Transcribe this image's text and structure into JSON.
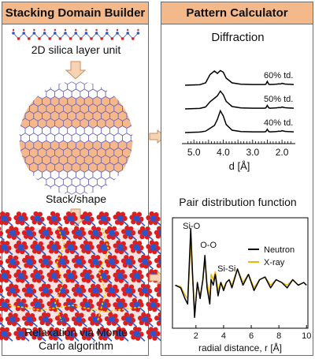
{
  "left_panel": {
    "title": "Stacking Domain Builder",
    "step1_label": "2D silica layer unit",
    "step2_label": "Stack/shape",
    "step3_label_line1": "Relaxation via Monte",
    "step3_label_line2": "Carlo algorithm"
  },
  "right_panel": {
    "title": "Pattern Calculator",
    "diffraction_title": "Diffraction",
    "pdf_title": "Pair distribution function"
  },
  "colors": {
    "header": "#f3b98b",
    "arrow_fill": "#f6d3b5",
    "arrow_stroke": "#c98f5e",
    "hex_fill": "#f6b88a",
    "neutron": "#000000",
    "xray": "#f0b400",
    "silicon": "#2a56c8",
    "oxygen": "#dd1e1e"
  },
  "chart_data": [
    {
      "type": "line",
      "title": "Diffraction",
      "xlabel": "d [Å]",
      "ylabel": "",
      "x_ticks": [
        5.0,
        4.0,
        3.0,
        2.0
      ],
      "x_tick_labels": [
        "5.0",
        "4.0",
        "3.0",
        "2.0"
      ],
      "xlim": [
        5.3,
        1.6
      ],
      "x_reversed": true,
      "series": [
        {
          "name": "60% td.",
          "x": [
            5.3,
            4.8,
            4.6,
            4.45,
            4.3,
            4.2,
            4.1,
            4.0,
            3.9,
            3.7,
            3.4,
            3.0,
            2.6,
            2.55,
            2.5,
            2.45,
            2.4,
            2.2,
            2.1,
            2.05,
            2.0,
            1.9,
            1.8,
            1.6
          ],
          "y": [
            0.0,
            0.02,
            0.1,
            0.45,
            0.6,
            0.5,
            0.62,
            0.55,
            0.3,
            0.1,
            0.04,
            0.03,
            0.03,
            0.04,
            0.16,
            0.04,
            0.03,
            0.04,
            0.06,
            0.05,
            0.08,
            0.05,
            0.04,
            0.03
          ]
        },
        {
          "name": "50% td.",
          "x": [
            5.3,
            4.8,
            4.6,
            4.45,
            4.3,
            4.2,
            4.1,
            4.0,
            3.9,
            3.7,
            3.4,
            3.0,
            2.6,
            2.55,
            2.5,
            2.45,
            2.4,
            2.2,
            2.1,
            2.05,
            2.0,
            1.9,
            1.8,
            1.6
          ],
          "y": [
            0.0,
            0.02,
            0.08,
            0.3,
            0.45,
            0.55,
            0.75,
            0.6,
            0.32,
            0.1,
            0.04,
            0.03,
            0.03,
            0.04,
            0.15,
            0.04,
            0.03,
            0.04,
            0.06,
            0.05,
            0.08,
            0.05,
            0.04,
            0.03
          ]
        },
        {
          "name": "40% td.",
          "x": [
            5.3,
            4.8,
            4.6,
            4.45,
            4.3,
            4.2,
            4.1,
            4.0,
            3.9,
            3.7,
            3.4,
            3.0,
            2.6,
            2.55,
            2.5,
            2.45,
            2.4,
            2.2,
            2.1,
            2.05,
            2.0,
            1.9,
            1.8,
            1.6
          ],
          "y": [
            0.0,
            0.02,
            0.06,
            0.18,
            0.3,
            0.55,
            0.92,
            0.7,
            0.34,
            0.1,
            0.04,
            0.03,
            0.03,
            0.04,
            0.14,
            0.04,
            0.03,
            0.04,
            0.06,
            0.05,
            0.08,
            0.05,
            0.04,
            0.03
          ]
        }
      ],
      "legend": "inline-right",
      "grid": false
    },
    {
      "type": "line",
      "title": "Pair distribution function",
      "xlabel": "radial distance, r [Å]",
      "ylabel": "",
      "x_ticks": [
        2,
        4,
        6,
        8,
        10
      ],
      "xlim": [
        0.3,
        10.1
      ],
      "ylim": [
        -0.8,
        1.25
      ],
      "annotations": [
        {
          "text": "Si-O",
          "x": 1.62
        },
        {
          "text": "O-O",
          "x": 2.65
        },
        {
          "text": "Si-Si",
          "x": 3.1
        }
      ],
      "series": [
        {
          "name": "Neutron",
          "x": [
            0.5,
            0.9,
            1.2,
            1.4,
            1.5,
            1.62,
            1.75,
            1.9,
            2.1,
            2.3,
            2.5,
            2.65,
            2.8,
            3.0,
            3.1,
            3.25,
            3.4,
            3.6,
            3.8,
            4.0,
            4.2,
            4.4,
            4.6,
            5.0,
            5.4,
            5.8,
            6.2,
            6.6,
            7.0,
            7.4,
            7.8,
            8.2,
            8.6,
            9.0,
            9.4,
            9.8,
            10.0
          ],
          "y": [
            0.0,
            -0.05,
            -0.25,
            -0.35,
            0.3,
            1.05,
            0.25,
            -0.6,
            0.05,
            -0.25,
            0.1,
            0.55,
            -0.05,
            -0.35,
            0.1,
            0.0,
            0.2,
            -0.2,
            0.05,
            -0.1,
            0.05,
            0.1,
            -0.05,
            0.3,
            0.0,
            0.2,
            -0.1,
            0.1,
            0.15,
            -0.05,
            0.1,
            0.05,
            -0.05,
            0.1,
            0.0,
            0.05,
            0.0
          ]
        },
        {
          "name": "X-ray",
          "x": [
            0.5,
            0.9,
            1.2,
            1.4,
            1.5,
            1.62,
            1.75,
            1.9,
            2.1,
            2.3,
            2.5,
            2.65,
            2.8,
            3.0,
            3.1,
            3.25,
            3.4,
            3.6,
            3.8,
            4.0,
            4.2,
            4.4,
            4.6,
            5.0,
            5.4,
            5.8,
            6.2,
            6.6,
            7.0,
            7.4,
            7.8,
            8.2,
            8.6,
            9.0,
            9.4,
            9.8,
            10.0
          ],
          "y": [
            0.0,
            -0.03,
            -0.18,
            -0.25,
            0.2,
            0.75,
            0.15,
            -0.5,
            0.0,
            -0.2,
            0.08,
            0.45,
            0.05,
            -0.25,
            0.2,
            0.1,
            0.25,
            -0.1,
            0.05,
            -0.05,
            0.05,
            0.1,
            0.0,
            0.3,
            0.05,
            0.2,
            -0.05,
            0.1,
            0.15,
            0.0,
            0.1,
            0.05,
            0.0,
            0.1,
            0.0,
            0.05,
            0.0
          ]
        }
      ],
      "legend": "top-right",
      "grid": false
    }
  ]
}
